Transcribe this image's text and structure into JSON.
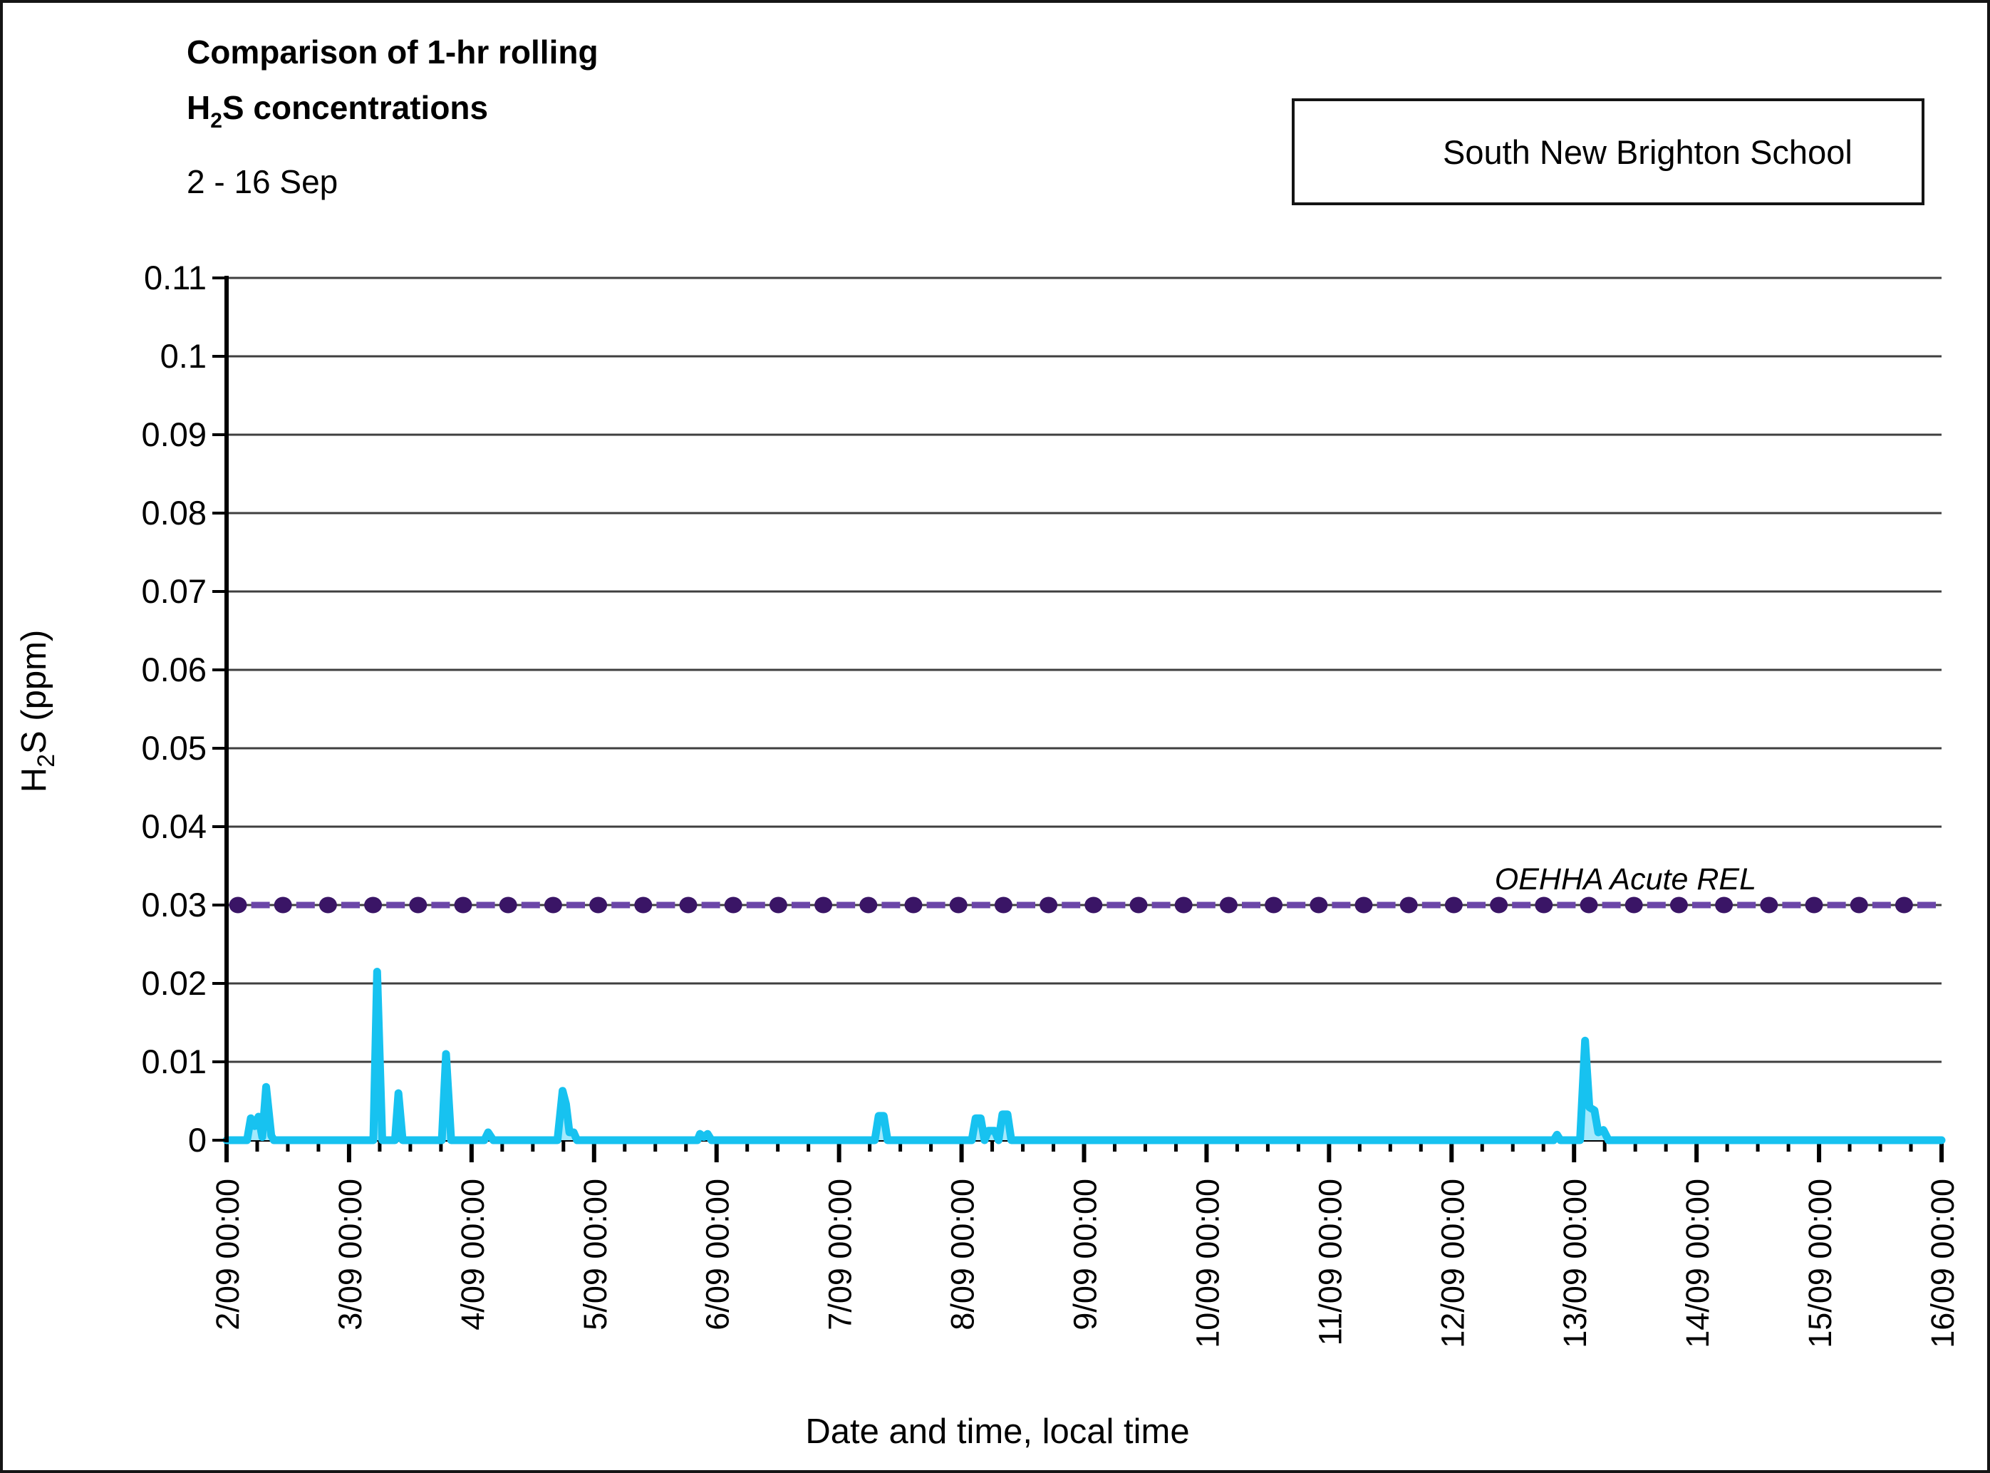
{
  "chart_data": {
    "type": "area",
    "title": "Comparison of 1-hr rolling H₂S concentrations",
    "title_line1": "Comparison of 1-hr rolling",
    "title_formula_prefix": "H",
    "title_formula_sub": "2",
    "title_formula_suffix": "S concentrations",
    "subtitle": "2 - 16 Sep",
    "xlabel": "Date and time, local time",
    "ylabel": "H₂S (ppm)",
    "ylabel_prefix": "H",
    "ylabel_sub": "2",
    "ylabel_suffix": "S (ppm)",
    "ylim": [
      0,
      0.11
    ],
    "ytick_step": 0.01,
    "ytick_labels": [
      "0",
      "0.01",
      "0.02",
      "0.03",
      "0.04",
      "0.05",
      "0.06",
      "0.07",
      "0.08",
      "0.09",
      "0.1",
      "0.11"
    ],
    "xtick_labels": [
      "2/09 00:00",
      "3/09 00:00",
      "4/09 00:00",
      "5/09 00:00",
      "6/09 00:00",
      "7/09 00:00",
      "8/09 00:00",
      "9/09 00:00",
      "10/09 00:00",
      "11/09 00:00",
      "12/09 00:00",
      "13/09 00:00",
      "14/09 00:00",
      "15/09 00:00",
      "16/09 00:00"
    ],
    "x_minor_tick_hours": 6,
    "grid": "horizontal",
    "grid_color": "#3F3F3F",
    "legend_position": "top-right",
    "series": [
      {
        "name": "South New Brighton School",
        "line_color": "#17C2F0",
        "fill_color": "#A3E9FC",
        "points": [
          [
            "2/09 00:00",
            0
          ],
          [
            "2/09 04:00",
            0
          ],
          [
            "2/09 04:45",
            0.0028
          ],
          [
            "2/09 05:30",
            0.0018
          ],
          [
            "2/09 06:15",
            0.003
          ],
          [
            "2/09 07:00",
            0.0004
          ],
          [
            "2/09 07:45",
            0.0068
          ],
          [
            "2/09 08:45",
            0.0006
          ],
          [
            "2/09 09:15",
            0
          ],
          [
            "3/09 04:45",
            0
          ],
          [
            "3/09 05:30",
            0.0215
          ],
          [
            "3/09 06:30",
            0
          ],
          [
            "3/09 09:00",
            0
          ],
          [
            "3/09 09:40",
            0.006
          ],
          [
            "3/09 10:30",
            0
          ],
          [
            "3/09 18:10",
            0
          ],
          [
            "3/09 19:00",
            0.011
          ],
          [
            "3/09 20:00",
            0
          ],
          [
            "4/09 02:30",
            0
          ],
          [
            "4/09 03:15",
            0.001
          ],
          [
            "4/09 04:15",
            0
          ],
          [
            "4/09 16:50",
            0
          ],
          [
            "4/09 17:50",
            0.0063
          ],
          [
            "4/09 18:30",
            0.0046
          ],
          [
            "4/09 19:10",
            0.001
          ],
          [
            "4/09 20:00",
            0.001
          ],
          [
            "4/09 20:40",
            0
          ],
          [
            "5/09 20:15",
            0
          ],
          [
            "5/09 20:45",
            0.0008
          ],
          [
            "5/09 21:30",
            0.0004
          ],
          [
            "5/09 22:15",
            0.0008
          ],
          [
            "5/09 23:00",
            0
          ],
          [
            "7/09 07:00",
            0
          ],
          [
            "7/09 07:45",
            0.0031
          ],
          [
            "7/09 08:45",
            0.0031
          ],
          [
            "7/09 09:30",
            0
          ],
          [
            "8/09 02:00",
            0
          ],
          [
            "8/09 02:45",
            0.0028
          ],
          [
            "8/09 03:45",
            0.0028
          ],
          [
            "8/09 04:30",
            0
          ],
          [
            "8/09 05:15",
            0.0012
          ],
          [
            "8/09 06:30",
            0.0012
          ],
          [
            "8/09 07:15",
            0
          ],
          [
            "8/09 08:00",
            0.0033
          ],
          [
            "8/09 09:00",
            0.0033
          ],
          [
            "8/09 09:45",
            0
          ],
          [
            "12/09 20:00",
            0
          ],
          [
            "12/09 20:40",
            0.0007
          ],
          [
            "12/09 21:20",
            0
          ],
          [
            "13/09 01:10",
            0
          ],
          [
            "13/09 02:10",
            0.0127
          ],
          [
            "13/09 03:00",
            0.0042
          ],
          [
            "13/09 04:00",
            0.0038
          ],
          [
            "13/09 04:45",
            0.001
          ],
          [
            "13/09 05:45",
            0.0013
          ],
          [
            "13/09 06:45",
            0
          ],
          [
            "16/09 00:00",
            0
          ]
        ]
      }
    ],
    "reference_line": {
      "label": "OEHHA Acute REL",
      "value": 0.03,
      "style": "dashed-with-dots",
      "marker_color": "#3A1566",
      "dash_color": "#6B46A8"
    }
  }
}
